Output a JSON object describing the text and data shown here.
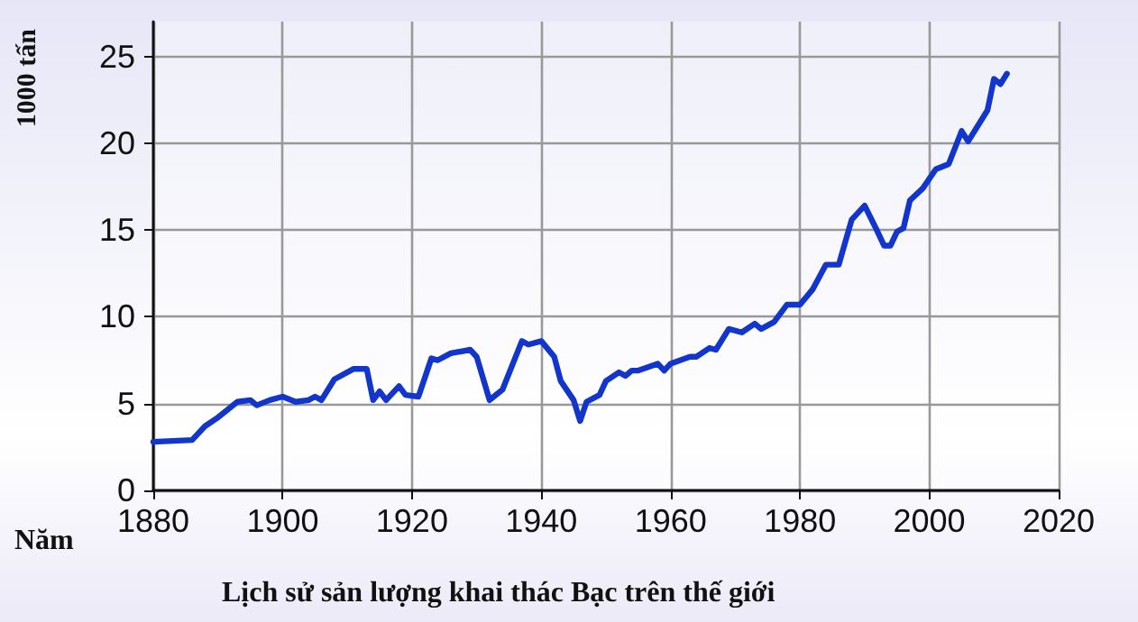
{
  "chart_data": {
    "type": "line",
    "title": "Lịch sử sản lượng khai thác Bạc trên thế giới",
    "xlabel": "Năm",
    "ylabel": "1000 tấn",
    "x": [
      1880,
      1886,
      1888,
      1890,
      1893,
      1895,
      1896,
      1898,
      1900,
      1902,
      1904,
      1905,
      1906,
      1908,
      1911,
      1913,
      1914,
      1915,
      1916,
      1918,
      1919,
      1921,
      1923,
      1924,
      1926,
      1929,
      1930,
      1932,
      1934,
      1937,
      1938,
      1940,
      1942,
      1943,
      1945,
      1946,
      1947,
      1949,
      1950,
      1952,
      1953,
      1954,
      1955,
      1958,
      1959,
      1960,
      1963,
      1964,
      1966,
      1967,
      1969,
      1971,
      1973,
      1974,
      1976,
      1978,
      1980,
      1982,
      1984,
      1986,
      1988,
      1990,
      1992,
      1993,
      1994,
      1995,
      1996,
      1997,
      1999,
      2001,
      2003,
      2005,
      2006,
      2009,
      2010,
      2011,
      2012
    ],
    "series": [
      {
        "color": "#1235cc",
        "values": [
          2.8,
          2.9,
          3.7,
          4.2,
          5.1,
          5.2,
          4.9,
          5.2,
          5.4,
          5.1,
          5.2,
          5.4,
          5.2,
          6.4,
          7.0,
          7.0,
          5.2,
          5.7,
          5.2,
          6.0,
          5.5,
          5.4,
          7.6,
          7.5,
          7.9,
          8.1,
          7.7,
          5.2,
          5.8,
          8.6,
          8.4,
          8.6,
          7.7,
          6.3,
          5.2,
          4.0,
          5.1,
          5.5,
          6.3,
          6.8,
          6.6,
          6.9,
          6.9,
          7.3,
          6.9,
          7.3,
          7.7,
          7.7,
          8.2,
          8.1,
          9.3,
          9.1,
          9.6,
          9.3,
          9.7,
          10.7,
          10.7,
          11.6,
          13.0,
          13.0,
          15.6,
          16.4,
          14.9,
          14.1,
          14.1,
          14.9,
          15.1,
          16.7,
          17.4,
          18.5,
          18.8,
          20.7,
          20.1,
          21.9,
          23.7,
          23.4,
          24.0
        ]
      }
    ],
    "xlim": [
      1880,
      2020
    ],
    "xticks": [
      1880,
      1900,
      1920,
      1940,
      1960,
      1980,
      2000,
      2020
    ],
    "ylim": [
      0,
      27
    ],
    "yticks": [
      0,
      5,
      10,
      15,
      20,
      25
    ],
    "grid": true,
    "marker": "none",
    "line_style": "solid"
  }
}
